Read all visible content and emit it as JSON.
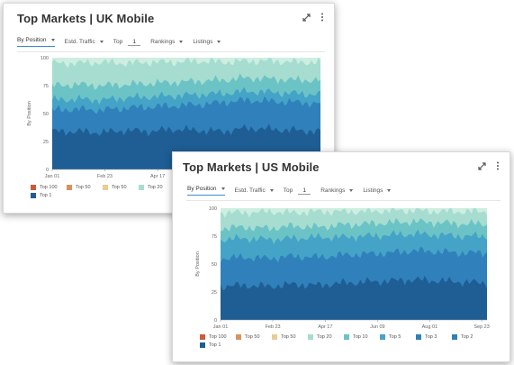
{
  "colors": {
    "top1": "#1e5e94",
    "top3": "#2f80bb",
    "top5": "#44a3c6",
    "top10": "#6bc3c5",
    "top20": "#a6ddd0",
    "top50_light": "#e9cb93",
    "top50": "#d9915d",
    "top100": "#c95c38"
  },
  "controls": {
    "by_position": "By Position",
    "estd_traffic": "Estd. Traffic",
    "top_label": "Top",
    "top_value": "1",
    "rankings": "Rankings",
    "listings": "Listings"
  },
  "icons": {
    "expand": "expand-icon",
    "more": "more-vertical-icon"
  },
  "uk": {
    "title": "Top Markets | UK Mobile",
    "chart_data": {
      "type": "area",
      "stacked": true,
      "ylabel": "By Position",
      "ylim": [
        0,
        100
      ],
      "yticks": [
        "100",
        "75",
        "50",
        "25",
        "0"
      ],
      "xticks": [
        "Jan 01",
        "Feb 23",
        "Apr 17"
      ],
      "series": [
        {
          "name": "Top 1",
          "level": [
            34,
            34,
            33,
            35,
            34,
            36,
            35,
            34,
            37,
            36,
            35,
            34
          ]
        },
        {
          "name": "Top 3",
          "level": [
            53,
            54,
            53,
            55,
            56,
            57,
            58,
            60,
            62,
            61,
            60,
            59
          ]
        },
        {
          "name": "Top 5",
          "level": [
            62,
            63,
            62,
            64,
            65,
            66,
            67,
            68,
            70,
            69,
            68,
            67
          ]
        },
        {
          "name": "Top 10",
          "level": [
            75,
            76,
            75,
            76,
            77,
            78,
            79,
            80,
            82,
            81,
            80,
            80
          ]
        },
        {
          "name": "Top 20",
          "level": [
            95,
            95,
            96,
            95,
            96,
            96,
            97,
            96,
            97,
            97,
            96,
            96
          ]
        }
      ]
    },
    "legend": [
      "Top 100",
      "Top 50",
      "Top 50",
      "Top 20",
      "Top 1"
    ]
  },
  "us": {
    "title": "Top Markets | US Mobile",
    "chart_data": {
      "type": "area",
      "stacked": true,
      "ylabel": "By Position",
      "ylim": [
        0,
        100
      ],
      "yticks": [
        "100",
        "75",
        "50",
        "25",
        "0"
      ],
      "xticks": [
        "Jan 01",
        "Feb 23",
        "Apr 17",
        "Jun 09",
        "Aug 01",
        "Sep 23"
      ],
      "series": [
        {
          "name": "Top 1",
          "level": [
            30,
            31,
            30,
            32,
            31,
            33,
            34,
            35,
            36,
            35,
            34,
            33
          ]
        },
        {
          "name": "Top 3",
          "level": [
            55,
            56,
            55,
            57,
            56,
            58,
            59,
            60,
            62,
            61,
            60,
            60
          ]
        },
        {
          "name": "Top 5",
          "level": [
            72,
            73,
            72,
            73,
            74,
            74,
            75,
            76,
            77,
            76,
            75,
            75
          ]
        },
        {
          "name": "Top 10",
          "level": [
            82,
            83,
            82,
            84,
            83,
            85,
            86,
            87,
            88,
            87,
            86,
            86
          ]
        },
        {
          "name": "Top 20",
          "level": [
            96,
            96,
            97,
            96,
            97,
            97,
            97,
            98,
            98,
            97,
            97,
            97
          ]
        }
      ]
    },
    "legend": [
      "Top 100",
      "Top 50",
      "Top 50",
      "Top 20",
      "Top 10",
      "Top 5",
      "Top 3",
      "Top 2",
      "Top 1"
    ]
  }
}
